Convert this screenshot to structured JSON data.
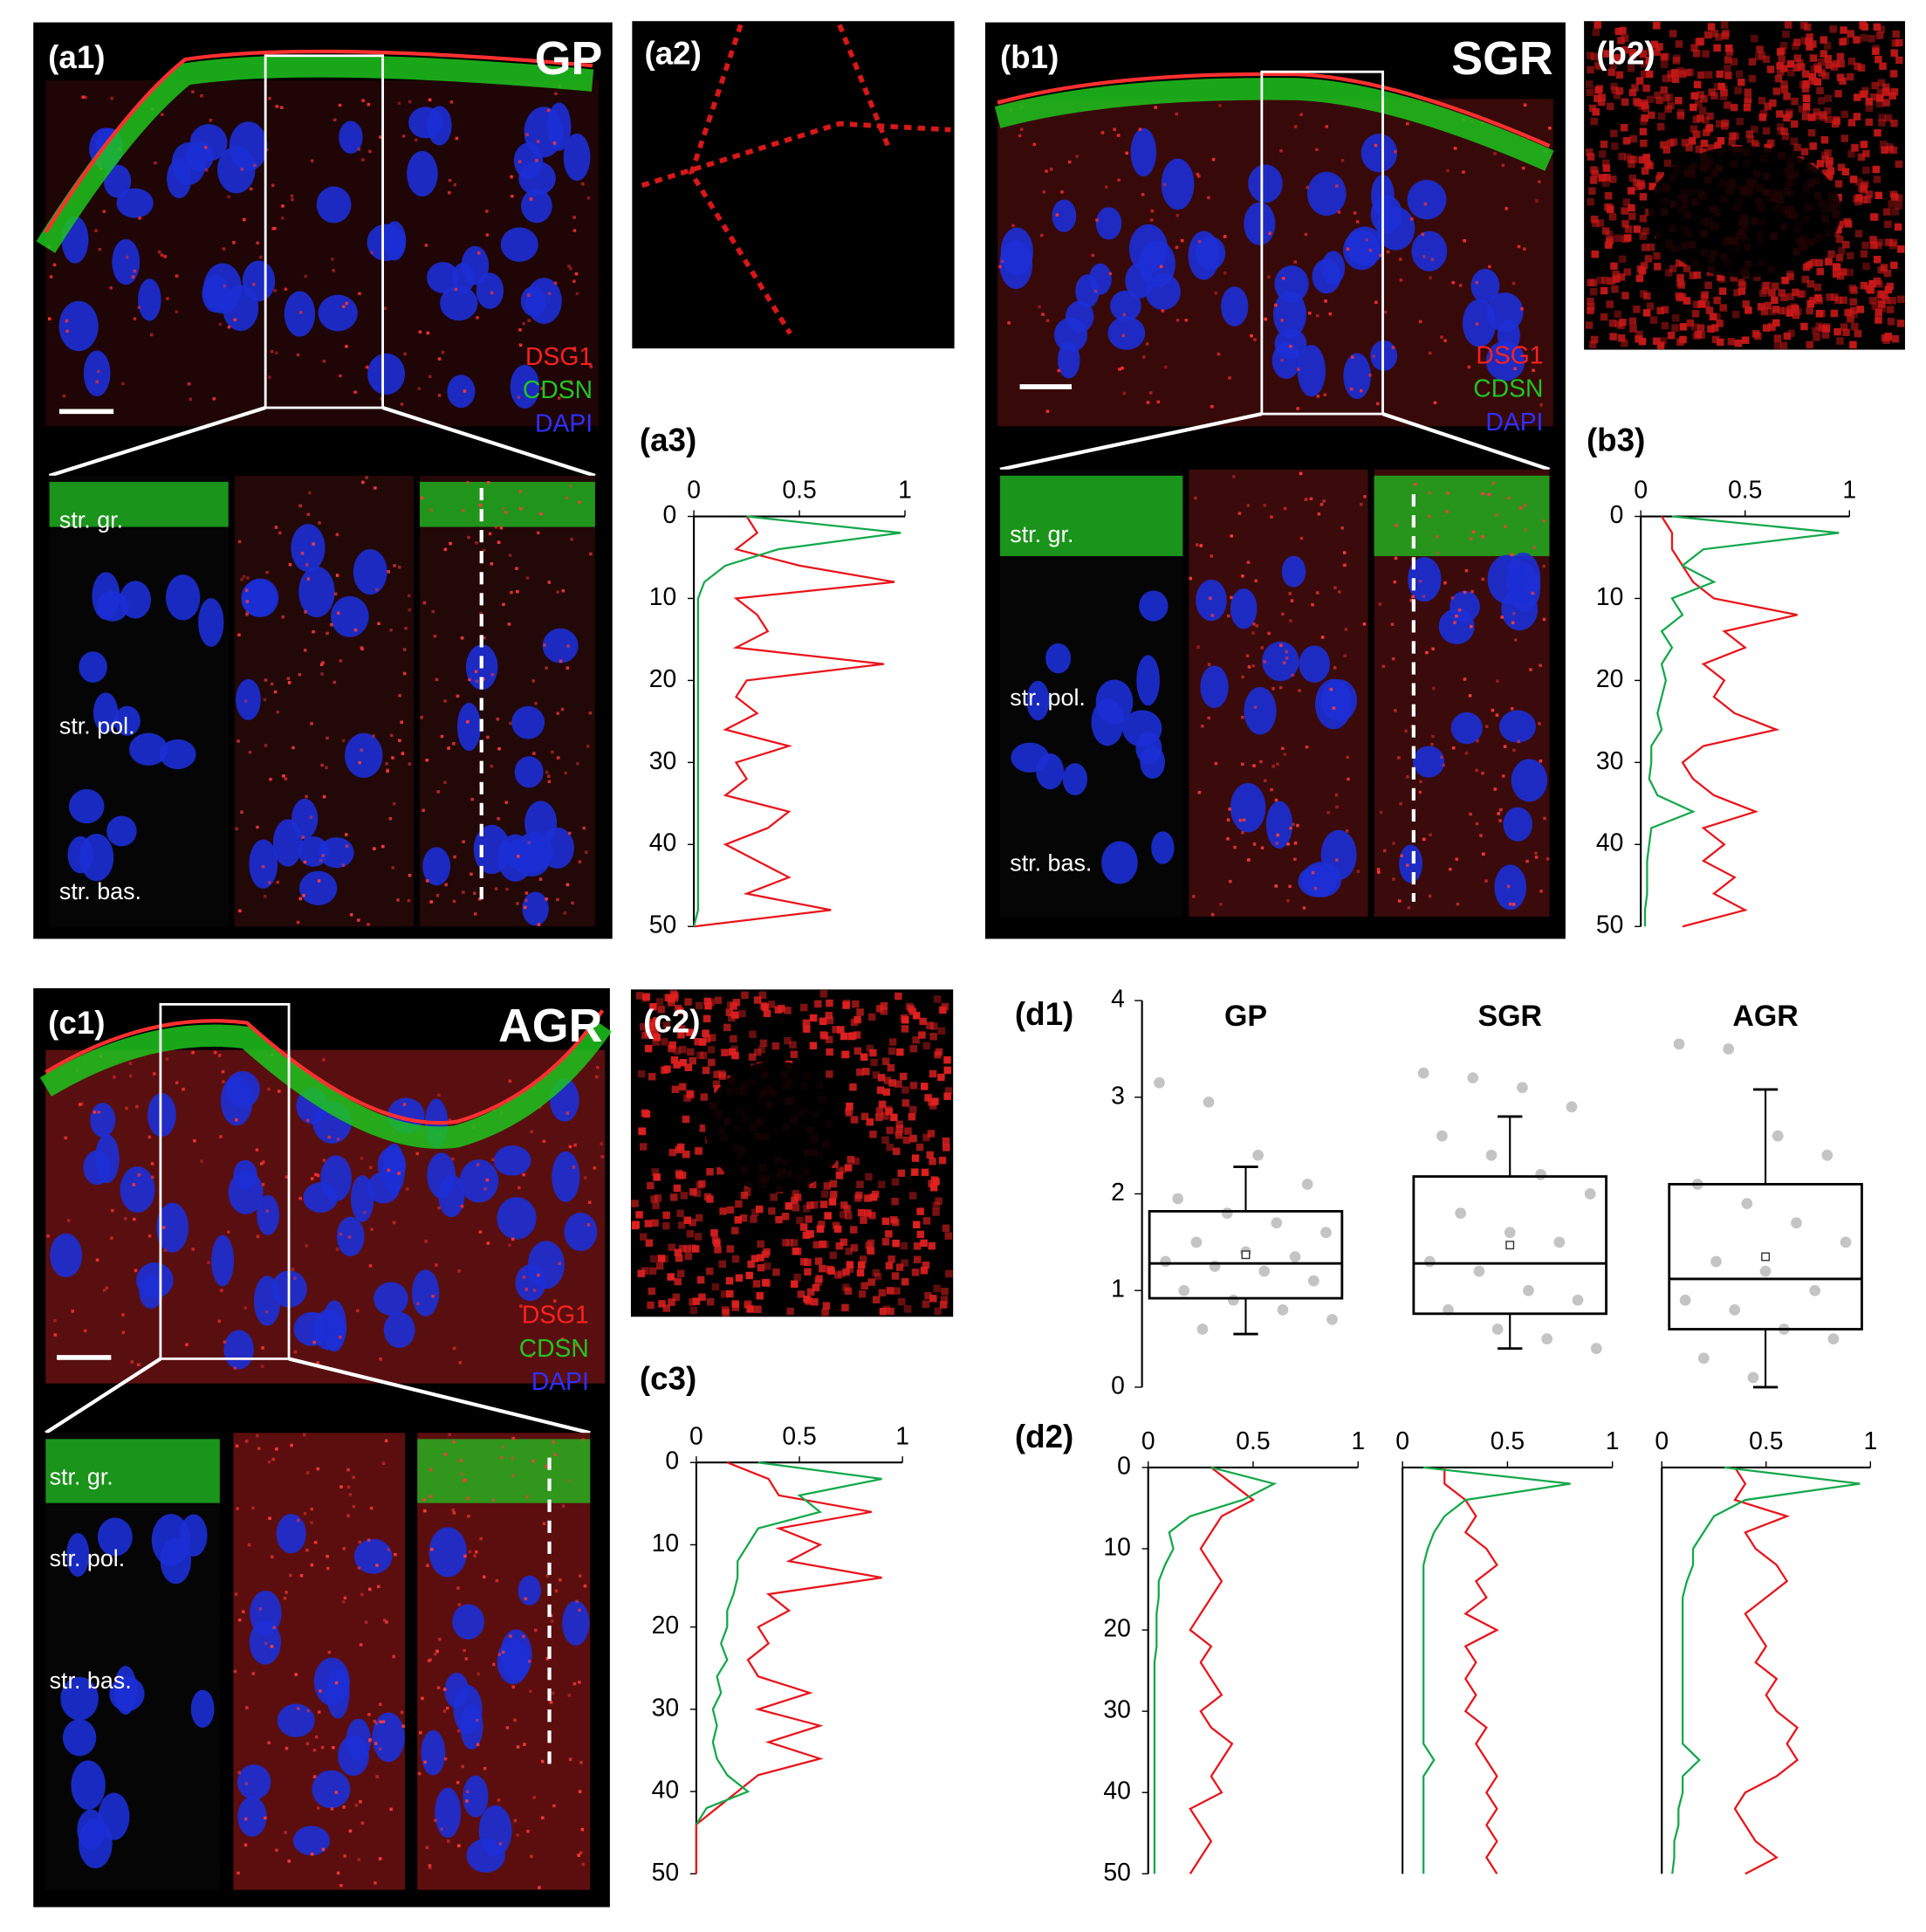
{
  "figure": {
    "stain_colors": [
      "#ff2020",
      "#22c422",
      "#3030ff"
    ],
    "a1": {
      "label": "(a1)",
      "group": "GP",
      "stains": [
        "DSG1",
        "CDSN",
        "DAPI"
      ],
      "layers": [
        "str. gr.",
        "str. pol.",
        "str. bas."
      ]
    },
    "a2": {
      "label": "(a2)"
    },
    "b1": {
      "label": "(b1)",
      "group": "SGR",
      "stains": [
        "DSG1",
        "CDSN",
        "DAPI"
      ],
      "layers": [
        "str. gr.",
        "str. pol.",
        "str. bas."
      ]
    },
    "b2": {
      "label": "(b2)"
    },
    "c1": {
      "label": "(c1)",
      "group": "AGR",
      "stains": [
        "DSG1",
        "CDSN",
        "DAPI"
      ],
      "layers": [
        "str. gr.",
        "str. pol.",
        "str. bas."
      ]
    },
    "c2": {
      "label": "(c2)"
    }
  },
  "chart_data": [
    {
      "type": "line",
      "title": "(a3)",
      "y": [
        0,
        2,
        4,
        6,
        8,
        10,
        12,
        14,
        16,
        18,
        20,
        22,
        24,
        26,
        28,
        30,
        32,
        34,
        36,
        38,
        40,
        42,
        44,
        46,
        48,
        50
      ],
      "xlim": [
        0,
        1
      ],
      "xticks": [
        0,
        0.5,
        1
      ],
      "ylim": [
        0,
        50
      ],
      "yticks": [
        0,
        10,
        20,
        30,
        40,
        50
      ],
      "series": [
        {
          "color": "#e8141b",
          "values": [
            0.25,
            0.3,
            0.2,
            0.5,
            0.95,
            0.2,
            0.3,
            0.35,
            0.2,
            0.9,
            0.25,
            0.2,
            0.3,
            0.15,
            0.45,
            0.2,
            0.25,
            0.15,
            0.45,
            0.35,
            0.15,
            0.3,
            0.45,
            0.25,
            0.65,
            0
          ]
        },
        {
          "color": "#14a84b",
          "values": [
            0.25,
            0.98,
            0.4,
            0.15,
            0.05,
            0.02,
            0.02,
            0.02,
            0.02,
            0.02,
            0.02,
            0.02,
            0.02,
            0.02,
            0.02,
            0.02,
            0.02,
            0.02,
            0.02,
            0.02,
            0.02,
            0.02,
            0.02,
            0.02,
            0.02,
            0
          ]
        }
      ]
    },
    {
      "type": "line",
      "title": "(b3)",
      "y": [
        0,
        2,
        4,
        6,
        8,
        10,
        12,
        14,
        16,
        18,
        20,
        22,
        24,
        26,
        28,
        30,
        32,
        34,
        36,
        38,
        40,
        42,
        44,
        46,
        48,
        50
      ],
      "xlim": [
        0,
        1
      ],
      "xticks": [
        0,
        0.5,
        1
      ],
      "ylim": [
        0,
        50
      ],
      "yticks": [
        0,
        10,
        20,
        30,
        40,
        50
      ],
      "series": [
        {
          "color": "#e8141b",
          "values": [
            0.1,
            0.15,
            0.15,
            0.2,
            0.25,
            0.35,
            0.75,
            0.4,
            0.5,
            0.3,
            0.4,
            0.35,
            0.45,
            0.65,
            0.3,
            0.2,
            0.25,
            0.35,
            0.55,
            0.3,
            0.4,
            0.3,
            0.45,
            0.35,
            0.5,
            0.2
          ]
        },
        {
          "color": "#14a84b",
          "values": [
            0.15,
            0.95,
            0.3,
            0.2,
            0.35,
            0.15,
            0.2,
            0.1,
            0.15,
            0.1,
            0.12,
            0.1,
            0.08,
            0.1,
            0.05,
            0.05,
            0.04,
            0.08,
            0.25,
            0.05,
            0.04,
            0.03,
            0.03,
            0.03,
            0.02,
            0.02
          ]
        }
      ]
    },
    {
      "type": "line",
      "title": "(c3)",
      "y": [
        0,
        2,
        4,
        6,
        8,
        10,
        12,
        14,
        16,
        18,
        20,
        22,
        24,
        26,
        28,
        30,
        32,
        34,
        36,
        38,
        40,
        42,
        44,
        46,
        48,
        50
      ],
      "xlim": [
        0,
        1
      ],
      "xticks": [
        0,
        0.5,
        1
      ],
      "ylim": [
        0,
        50
      ],
      "yticks": [
        0,
        10,
        20,
        30,
        40,
        50
      ],
      "series": [
        {
          "color": "#e8141b",
          "values": [
            0.15,
            0.35,
            0.4,
            0.85,
            0.4,
            0.6,
            0.45,
            0.9,
            0.35,
            0.45,
            0.3,
            0.35,
            0.25,
            0.3,
            0.55,
            0.3,
            0.6,
            0.35,
            0.6,
            0.3,
            0.2,
            0.1,
            0,
            0,
            0,
            0
          ]
        },
        {
          "color": "#14a84b",
          "values": [
            0.3,
            0.9,
            0.5,
            0.6,
            0.3,
            0.25,
            0.2,
            0.2,
            0.18,
            0.15,
            0.15,
            0.12,
            0.15,
            0.1,
            0.12,
            0.08,
            0.1,
            0.08,
            0.1,
            0.15,
            0.25,
            0.05,
            0,
            null,
            null,
            null
          ]
        }
      ]
    },
    {
      "type": "box",
      "title": "(d1)",
      "categories": [
        "GP",
        "SGR",
        "AGR"
      ],
      "ylim": [
        0,
        4
      ],
      "yticks": [
        0,
        1,
        2,
        3,
        4
      ],
      "point_color": "#c4c4c4",
      "boxes": [
        {
          "min": 0.55,
          "q1": 0.92,
          "median": 1.28,
          "q3": 1.82,
          "max": 2.28,
          "mean": 1.37,
          "points": [
            3.15,
            2.95,
            2.4,
            2.1,
            1.95,
            1.8,
            1.7,
            1.6,
            1.5,
            1.4,
            1.35,
            1.3,
            1.25,
            1.2,
            1.1,
            1.0,
            0.9,
            0.8,
            0.7,
            0.6
          ]
        },
        {
          "min": 0.4,
          "q1": 0.76,
          "median": 1.28,
          "q3": 2.18,
          "max": 2.8,
          "mean": 1.47,
          "points": [
            3.25,
            3.2,
            3.1,
            2.9,
            2.6,
            2.4,
            2.2,
            2.0,
            1.8,
            1.6,
            1.5,
            1.3,
            1.2,
            1.0,
            0.9,
            0.8,
            0.6,
            0.5,
            0.4
          ]
        },
        {
          "min": 0,
          "q1": 0.6,
          "median": 1.12,
          "q3": 2.1,
          "max": 3.08,
          "mean": 1.35,
          "points": [
            3.55,
            3.5,
            2.6,
            2.4,
            2.1,
            1.9,
            1.7,
            1.5,
            1.3,
            1.2,
            1.0,
            0.9,
            0.8,
            0.6,
            0.5,
            0.3,
            0.1
          ]
        }
      ]
    },
    {
      "type": "line",
      "title": "(d2)",
      "y": [
        0,
        2,
        4,
        6,
        8,
        10,
        12,
        14,
        16,
        18,
        20,
        22,
        24,
        26,
        28,
        30,
        32,
        34,
        36,
        38,
        40,
        42,
        44,
        46,
        48,
        50
      ],
      "xlim": [
        0,
        1
      ],
      "xticks": [
        0,
        0.5,
        1
      ],
      "ylim": [
        0,
        50
      ],
      "yticks": [
        0,
        10,
        20,
        30,
        40,
        50
      ],
      "series": [
        {
          "color": "#e8141b",
          "values": [
            0.3,
            0.4,
            0.5,
            0.35,
            0.3,
            0.25,
            0.3,
            0.35,
            0.3,
            0.25,
            0.2,
            0.3,
            0.25,
            0.3,
            0.35,
            0.25,
            0.3,
            0.4,
            0.35,
            0.3,
            0.35,
            0.2,
            0.25,
            0.3,
            0.25,
            0.2
          ]
        },
        {
          "color": "#14a84b",
          "values": [
            0.3,
            0.6,
            0.45,
            0.2,
            0.1,
            0.12,
            0.08,
            0.05,
            0.05,
            0.04,
            0.04,
            0.04,
            0.03,
            0.03,
            0.03,
            0.03,
            0.03,
            0.03,
            0.03,
            0.03,
            0.03,
            0.03,
            0.03,
            0.03,
            0.03,
            0.03
          ]
        }
      ]
    },
    {
      "type": "line",
      "y": [
        0,
        2,
        4,
        6,
        8,
        10,
        12,
        14,
        16,
        18,
        20,
        22,
        24,
        26,
        28,
        30,
        32,
        34,
        36,
        38,
        40,
        42,
        44,
        46,
        48,
        50
      ],
      "xlim": [
        0,
        1
      ],
      "xticks": [
        0,
        0.5,
        1
      ],
      "ylim": [
        0,
        50
      ],
      "series": [
        {
          "color": "#e8141b",
          "values": [
            0.2,
            0.2,
            0.3,
            0.35,
            0.3,
            0.4,
            0.45,
            0.35,
            0.4,
            0.3,
            0.45,
            0.3,
            0.35,
            0.3,
            0.35,
            0.3,
            0.4,
            0.35,
            0.4,
            0.45,
            0.4,
            0.45,
            0.4,
            0.45,
            0.4,
            0.45
          ]
        },
        {
          "color": "#14a84b",
          "values": [
            0.1,
            0.8,
            0.3,
            0.2,
            0.15,
            0.12,
            0.1,
            0.1,
            0.1,
            0.1,
            0.1,
            0.1,
            0.1,
            0.1,
            0.1,
            0.1,
            0.1,
            0.1,
            0.15,
            0.1,
            0.1,
            0.1,
            0.1,
            0.1,
            0.1,
            0.1
          ]
        }
      ]
    },
    {
      "type": "line",
      "y": [
        0,
        2,
        4,
        6,
        8,
        10,
        12,
        14,
        16,
        18,
        20,
        22,
        24,
        26,
        28,
        30,
        32,
        34,
        36,
        38,
        40,
        42,
        44,
        46,
        48,
        50
      ],
      "xlim": [
        0,
        1
      ],
      "xticks": [
        0,
        0.5,
        1
      ],
      "ylim": [
        0,
        50
      ],
      "series": [
        {
          "color": "#e8141b",
          "values": [
            0.35,
            0.4,
            0.35,
            0.6,
            0.4,
            0.45,
            0.55,
            0.6,
            0.5,
            0.4,
            0.45,
            0.5,
            0.45,
            0.55,
            0.5,
            0.55,
            0.65,
            0.6,
            0.65,
            0.55,
            0.4,
            0.35,
            0.4,
            0.45,
            0.55,
            0.4
          ]
        },
        {
          "color": "#14a84b",
          "values": [
            0.3,
            0.95,
            0.4,
            0.25,
            0.2,
            0.15,
            0.15,
            0.12,
            0.1,
            0.1,
            0.1,
            0.1,
            0.1,
            0.1,
            0.1,
            0.1,
            0.1,
            0.1,
            0.18,
            0.1,
            0.1,
            0.08,
            0.08,
            0.06,
            0.06,
            0.05
          ]
        }
      ]
    }
  ]
}
